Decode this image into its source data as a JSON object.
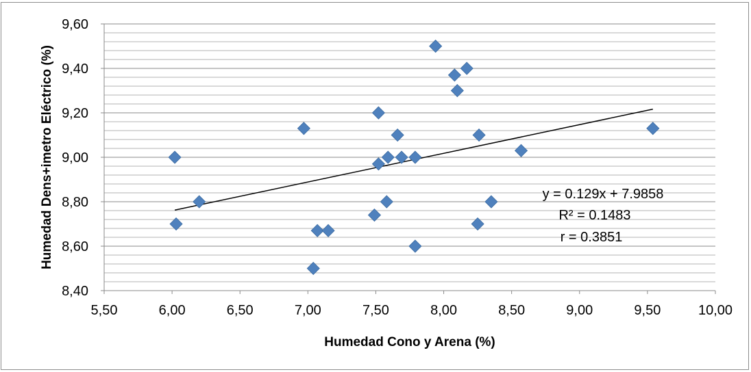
{
  "chart_data": {
    "type": "scatter",
    "xlabel": "Humedad Cono y Arena (%)",
    "ylabel": "Humedad Dens+imetro Eléctrico (%)",
    "xlim": [
      5.5,
      10.0
    ],
    "ylim": [
      8.4,
      9.6
    ],
    "x_ticks": [
      "5,50",
      "6,00",
      "6,50",
      "7,00",
      "7,50",
      "8,00",
      "8,50",
      "9,00",
      "9,50",
      "10,00"
    ],
    "y_ticks": [
      "9,60",
      "9,40",
      "9,20",
      "9,00",
      "8,80",
      "8,60",
      "8,40"
    ],
    "grid": true,
    "minor_grid": true,
    "marker": "diamond",
    "marker_color": "#4f81bd",
    "series": [
      {
        "points": [
          [
            6.02,
            9.0
          ],
          [
            6.03,
            8.7
          ],
          [
            6.2,
            8.8
          ],
          [
            6.97,
            9.13
          ],
          [
            7.04,
            8.5
          ],
          [
            7.07,
            8.67
          ],
          [
            7.15,
            8.67
          ],
          [
            7.49,
            8.74
          ],
          [
            7.52,
            9.2
          ],
          [
            7.52,
            8.97
          ],
          [
            7.58,
            8.8
          ],
          [
            7.59,
            9.0
          ],
          [
            7.66,
            9.1
          ],
          [
            7.69,
            9.0
          ],
          [
            7.79,
            9.0
          ],
          [
            7.79,
            8.6
          ],
          [
            7.94,
            9.5
          ],
          [
            8.08,
            9.37
          ],
          [
            8.1,
            9.3
          ],
          [
            8.17,
            9.4
          ],
          [
            8.25,
            8.7
          ],
          [
            8.26,
            9.1
          ],
          [
            8.35,
            8.8
          ],
          [
            8.57,
            9.03
          ],
          [
            9.54,
            9.13
          ]
        ]
      }
    ],
    "trendline": {
      "slope": 0.129,
      "intercept": 7.9858,
      "x_range": [
        6.02,
        9.54
      ],
      "color": "#000000"
    },
    "annotations": [
      "y = 0.129x + 7.9858",
      "R² = 0.1483",
      "r = 0.3851"
    ]
  }
}
